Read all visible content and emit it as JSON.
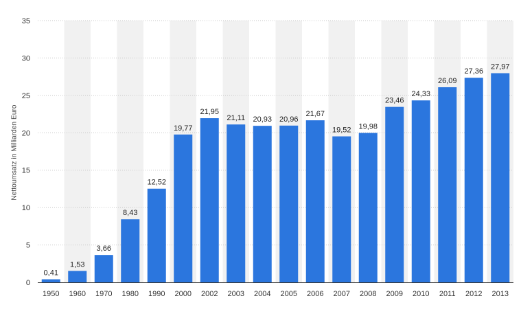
{
  "chart_data": {
    "type": "bar",
    "categories": [
      "1950",
      "1960",
      "1970",
      "1980",
      "1990",
      "2000",
      "2002",
      "2003",
      "2004",
      "2005",
      "2006",
      "2007",
      "2008",
      "2009",
      "2010",
      "2011",
      "2012",
      "2013"
    ],
    "values": [
      0.41,
      1.53,
      3.66,
      8.43,
      12.52,
      19.77,
      21.95,
      21.11,
      20.93,
      20.96,
      21.67,
      19.52,
      19.98,
      23.46,
      24.33,
      26.09,
      27.36,
      27.97
    ],
    "value_labels": [
      "0,41",
      "1,53",
      "3,66",
      "8,43",
      "12,52",
      "19,77",
      "21,95",
      "21,11",
      "20,93",
      "20,96",
      "21,67",
      "19,52",
      "19,98",
      "23,46",
      "24,33",
      "26,09",
      "27,36",
      "27,97"
    ],
    "title": "",
    "xlabel": "",
    "ylabel": "Nettoumsatz in Milliarden Euro",
    "ylim": [
      0,
      35
    ],
    "yticks": [
      "0",
      "5",
      "10",
      "15",
      "20",
      "25",
      "30",
      "35"
    ],
    "grid": true,
    "legend": "none",
    "colors": {
      "bar": "#2b76de",
      "band": "#f1f1f1",
      "grid": "#c7c7c7",
      "axis": "#333333"
    }
  }
}
